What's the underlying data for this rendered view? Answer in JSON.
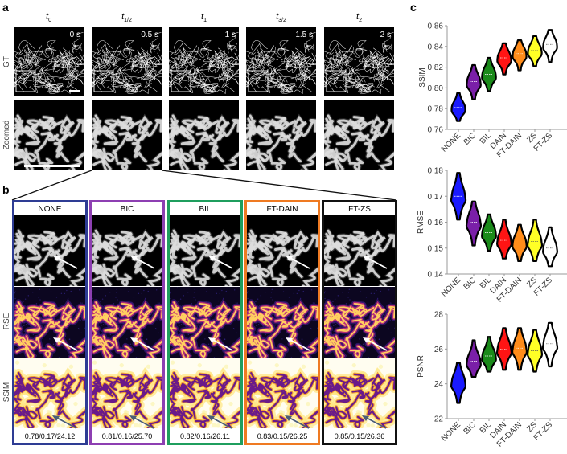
{
  "panel_labels": {
    "a": "a",
    "b": "b",
    "c": "c"
  },
  "panel_a": {
    "columns": [
      {
        "base": "t",
        "sub": "0",
        "time": "0 s"
      },
      {
        "base": "t",
        "sub": "1/2",
        "time": "0.5 s"
      },
      {
        "base": "t",
        "sub": "1",
        "time": "1 s"
      },
      {
        "base": "t",
        "sub": "3/2",
        "time": "1.5 s"
      },
      {
        "base": "t",
        "sub": "2",
        "time": "2 s"
      }
    ],
    "row_labels": [
      "GT",
      "Zoomed"
    ]
  },
  "panel_b": {
    "row_labels": [
      "RSE",
      "SSIM"
    ],
    "methods": [
      {
        "name": "NONE",
        "color": "#2e3c94",
        "metrics": "0.78/0.17/24.12"
      },
      {
        "name": "BIC",
        "color": "#8d3fb2",
        "metrics": "0.81/0.16/25.70"
      },
      {
        "name": "BIL",
        "color": "#1f9e5e",
        "metrics": "0.82/0.16/26.11"
      },
      {
        "name": "FT-DAIN",
        "color": "#ef7a22",
        "metrics": "0.83/0.15/26.25"
      },
      {
        "name": "FT-ZS",
        "color": "#111111",
        "metrics": "0.85/0.15/26.36"
      }
    ]
  },
  "chart_data": [
    {
      "type": "violin",
      "ylabel": "SSIM",
      "categories": [
        "NONE",
        "BIC",
        "BIL",
        "DAIN",
        "FT-DAIN",
        "ZS",
        "FT-ZS"
      ],
      "colors": [
        "#1a1aff",
        "#7a1fa8",
        "#1a8a1a",
        "#ff1414",
        "#ff8c1a",
        "#ffff26",
        "#ffffff"
      ],
      "median": [
        0.781,
        0.806,
        0.813,
        0.829,
        0.833,
        0.836,
        0.842
      ],
      "min": [
        0.768,
        0.789,
        0.797,
        0.813,
        0.817,
        0.821,
        0.825
      ],
      "max": [
        0.795,
        0.822,
        0.829,
        0.843,
        0.846,
        0.85,
        0.856
      ],
      "ylim": [
        0.76,
        0.86
      ],
      "yticks": [
        "0.76",
        "0.78",
        "0.80",
        "0.82",
        "0.84",
        "0.86"
      ]
    },
    {
      "type": "violin",
      "ylabel": "RMSE",
      "categories": [
        "NONE",
        "BIC",
        "BIL",
        "DAIN",
        "FT-DAIN",
        "ZS",
        "FT-ZS"
      ],
      "colors": [
        "#1a1aff",
        "#7a1fa8",
        "#1a8a1a",
        "#ff1414",
        "#ff8c1a",
        "#ffff26",
        "#ffffff"
      ],
      "median": [
        0.17,
        0.16,
        0.156,
        0.153,
        0.152,
        0.1525,
        0.15
      ],
      "min": [
        0.161,
        0.151,
        0.149,
        0.146,
        0.145,
        0.145,
        0.143
      ],
      "max": [
        0.179,
        0.168,
        0.163,
        0.161,
        0.159,
        0.161,
        0.158
      ],
      "ylim": [
        0.14,
        0.18
      ],
      "yticks": [
        "0.14",
        "0.15",
        "0.16",
        "0.17",
        "0.18"
      ]
    },
    {
      "type": "violin",
      "ylabel": "PSNR",
      "categories": [
        "NONE",
        "BIC",
        "BIL",
        "DAIN",
        "FT-DAIN",
        "ZS",
        "FT-ZS"
      ],
      "colors": [
        "#1a1aff",
        "#7a1fa8",
        "#1a8a1a",
        "#ff1414",
        "#ff8c1a",
        "#ffff26",
        "#ffffff"
      ],
      "median": [
        24.1,
        25.3,
        25.6,
        26.0,
        26.05,
        25.9,
        26.3
      ],
      "min": [
        22.9,
        24.4,
        24.7,
        24.8,
        24.8,
        24.7,
        25.0
      ],
      "max": [
        25.2,
        26.5,
        26.7,
        27.2,
        27.2,
        27.1,
        27.5
      ],
      "ylim": [
        22,
        28
      ],
      "yticks": [
        "22",
        "24",
        "26",
        "28"
      ]
    }
  ]
}
